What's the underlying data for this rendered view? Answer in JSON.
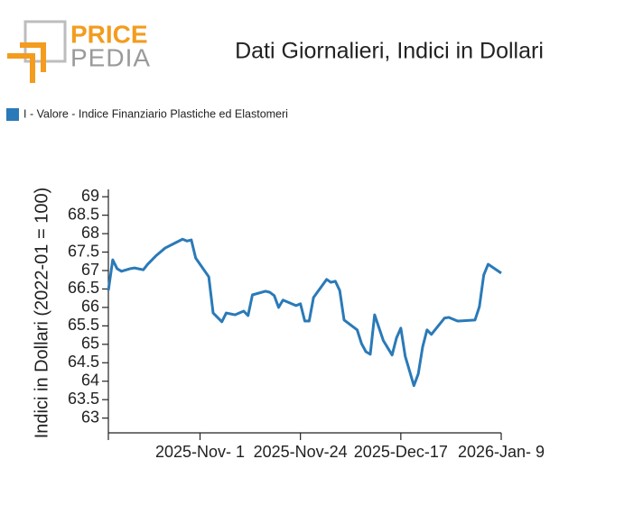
{
  "brand": {
    "first": "PRICE",
    "second": "PEDIA"
  },
  "chart_data": {
    "type": "line",
    "title": "Dati Giornalieri, Indici in Dollari",
    "y_label": "Indici in Dollari (2022-01 = 100)",
    "x": [
      "2025-10-11",
      "2025-10-12",
      "2025-10-13",
      "2025-10-14",
      "2025-10-16",
      "2025-10-17",
      "2025-10-19",
      "2025-10-20",
      "2025-10-22",
      "2025-10-24",
      "2025-10-26",
      "2025-10-28",
      "2025-10-29",
      "2025-10-30",
      "2025-10-31",
      "2025-11-03",
      "2025-11-04",
      "2025-11-06",
      "2025-11-07",
      "2025-11-09",
      "2025-11-11",
      "2025-11-12",
      "2025-11-13",
      "2025-11-16",
      "2025-11-17",
      "2025-11-18",
      "2025-11-19",
      "2025-11-20",
      "2025-11-23",
      "2025-11-24",
      "2025-11-25",
      "2025-11-26",
      "2025-11-27",
      "2025-11-30",
      "2025-12-01",
      "2025-12-02",
      "2025-12-03",
      "2025-12-04",
      "2025-12-07",
      "2025-12-08",
      "2025-12-09",
      "2025-12-10",
      "2025-12-11",
      "2025-12-13",
      "2025-12-15",
      "2025-12-16",
      "2025-12-17",
      "2025-12-18",
      "2025-12-20",
      "2025-12-21",
      "2025-12-22",
      "2025-12-23",
      "2025-12-24",
      "2025-12-27",
      "2025-12-28",
      "2025-12-30",
      "2026-01-03",
      "2026-01-04",
      "2026-01-05",
      "2026-01-06",
      "2026-01-09"
    ],
    "series": [
      {
        "name": "I - Valore - Indice Finanziario Plastiche ed Elastomeri",
        "color": "#2a7ab8",
        "values": [
          66.46,
          67.29,
          67.05,
          66.98,
          67.05,
          67.07,
          67.02,
          67.17,
          67.41,
          67.61,
          67.73,
          67.85,
          67.8,
          67.83,
          67.34,
          66.83,
          65.85,
          65.61,
          65.85,
          65.8,
          65.9,
          65.78,
          66.34,
          66.44,
          66.41,
          66.32,
          66.0,
          66.2,
          66.05,
          66.1,
          65.63,
          65.63,
          66.27,
          66.76,
          66.68,
          66.71,
          66.46,
          65.66,
          65.39,
          65.02,
          64.8,
          64.73,
          65.8,
          65.1,
          64.71,
          65.17,
          65.44,
          64.68,
          63.88,
          64.2,
          64.93,
          65.39,
          65.27,
          65.71,
          65.73,
          65.63,
          65.66,
          66.02,
          66.88,
          67.17,
          66.93
        ]
      }
    ],
    "xlim": [
      "2025-10-11",
      "2026-01-09"
    ],
    "xticks": [
      {
        "value": "2025-11-01",
        "label": "2025-Nov- 1"
      },
      {
        "value": "2025-11-24",
        "label": "2025-Nov-24"
      },
      {
        "value": "2025-12-17",
        "label": "2025-Dec-17"
      },
      {
        "value": "2026-01-09",
        "label": "2026-Jan- 9"
      }
    ],
    "ylim": [
      62.6,
      69.2
    ],
    "yticks": [
      63,
      63.5,
      64,
      64.5,
      65,
      65.5,
      66,
      66.5,
      67,
      67.5,
      68,
      68.5,
      69
    ],
    "grid": false,
    "legend": "top-left"
  }
}
